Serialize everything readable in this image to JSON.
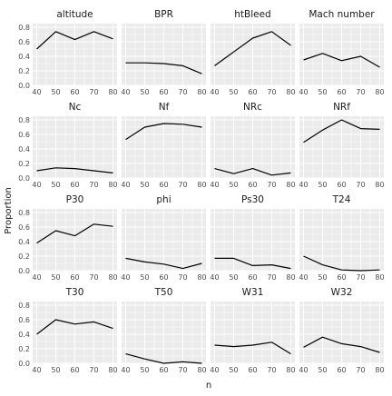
{
  "chart_data": {
    "type": "line",
    "layout": "facet-grid-4x4",
    "xlabel": "n",
    "ylabel": "Proportion",
    "x": [
      40,
      50,
      60,
      70,
      80
    ],
    "x_ticks": [
      40,
      50,
      60,
      70,
      80
    ],
    "y_ticks": [
      0.0,
      0.2,
      0.4,
      0.6,
      0.8
    ],
    "y_tick_labels": [
      "0.0",
      "0.2",
      "0.4",
      "0.6",
      "0.8"
    ],
    "xlim": [
      40,
      80
    ],
    "ylim": [
      0,
      0.85
    ],
    "grid": true,
    "panel_background": "#ebebeb",
    "grid_color": "#ffffff",
    "line_color": "#000000",
    "panels": [
      {
        "title": "altitude",
        "values": [
          0.5,
          0.74,
          0.63,
          0.74,
          0.64
        ]
      },
      {
        "title": "BPR",
        "values": [
          0.31,
          0.31,
          0.3,
          0.27,
          0.16
        ]
      },
      {
        "title": "htBleed",
        "values": [
          0.27,
          0.46,
          0.65,
          0.74,
          0.55
        ]
      },
      {
        "title": "Mach number",
        "values": [
          0.35,
          0.44,
          0.34,
          0.4,
          0.25
        ]
      },
      {
        "title": "Nc",
        "values": [
          0.1,
          0.14,
          0.13,
          0.1,
          0.07
        ]
      },
      {
        "title": "Nf",
        "values": [
          0.53,
          0.7,
          0.75,
          0.74,
          0.7
        ]
      },
      {
        "title": "NRc",
        "values": [
          0.13,
          0.06,
          0.13,
          0.04,
          0.07
        ]
      },
      {
        "title": "NRf",
        "values": [
          0.49,
          0.66,
          0.8,
          0.68,
          0.67
        ]
      },
      {
        "title": "P30",
        "values": [
          0.38,
          0.55,
          0.48,
          0.64,
          0.61
        ]
      },
      {
        "title": "phi",
        "values": [
          0.17,
          0.12,
          0.09,
          0.03,
          0.1
        ]
      },
      {
        "title": "Ps30",
        "values": [
          0.17,
          0.17,
          0.07,
          0.08,
          0.03
        ]
      },
      {
        "title": "T24",
        "values": [
          0.2,
          0.08,
          0.01,
          0.0,
          0.01
        ]
      },
      {
        "title": "T30",
        "values": [
          0.4,
          0.6,
          0.54,
          0.57,
          0.48
        ]
      },
      {
        "title": "T50",
        "values": [
          0.13,
          0.06,
          0.0,
          0.02,
          0.0
        ]
      },
      {
        "title": "W31",
        "values": [
          0.25,
          0.23,
          0.25,
          0.29,
          0.13
        ]
      },
      {
        "title": "W32",
        "values": [
          0.22,
          0.36,
          0.27,
          0.23,
          0.15
        ]
      }
    ]
  }
}
